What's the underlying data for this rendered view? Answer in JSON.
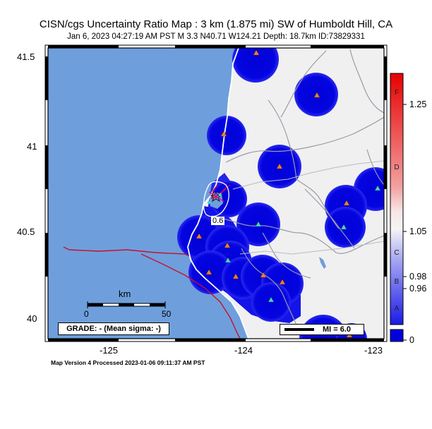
{
  "header": {
    "title": "CISN/cgs Uncertainty Ratio Map : 3 km (1.875 mi) SW of Humboldt Hill, CA",
    "subtitle": "Jan  6, 2023 04:27:19 AM PST   M 3.3   N40.71 W124.21   Depth: 18.7km   ID:73829331"
  },
  "map": {
    "lat_ticks": [
      "41.5",
      "41",
      "40.5",
      "40"
    ],
    "lon_ticks": [
      "-125",
      "-124",
      "-123"
    ],
    "contour_label": "0.6",
    "colors": {
      "ocean": "#6e9fdc",
      "land": "#f0f0f0",
      "high_density": "#0a0ae6",
      "fault": "#c8102e",
      "station_orange": "#ff7f1e",
      "station_cyan": "#3fd6c8"
    }
  },
  "scale_bar": {
    "title": "km",
    "min_label": "0",
    "max_label": "50"
  },
  "grade_box": {
    "text": "GRADE: - (Mean sigma: -)"
  },
  "mi_box": {
    "text": "MI = 6.0"
  },
  "colorbar": {
    "letters": [
      "F",
      "D",
      "C",
      "B",
      "A"
    ],
    "ticks": [
      "1.25",
      "1.05",
      "0.98",
      "0.96",
      "0"
    ]
  },
  "footer": {
    "text": "Map Version 4 Processed 2023-01-06 09:11:37 AM PST"
  }
}
